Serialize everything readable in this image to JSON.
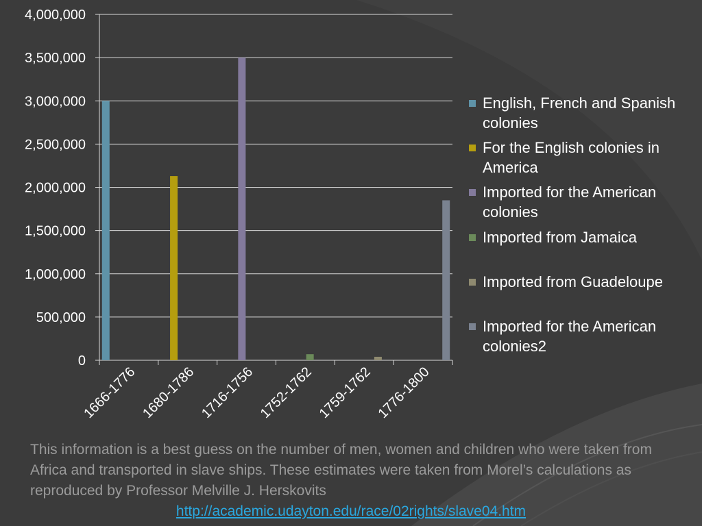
{
  "chart_data": {
    "type": "bar",
    "categories": [
      "1666-1776",
      "1680-1786",
      "1716-1756",
      "1752-1762",
      "1759-1762",
      "1776-1800"
    ],
    "series": [
      {
        "name": "English, French and Spanish colonies",
        "color": "#5f93a8",
        "values": [
          3000000,
          null,
          null,
          null,
          null,
          null
        ]
      },
      {
        "name": "For the English colonies in America",
        "color": "#b59e0f",
        "values": [
          null,
          2130000,
          null,
          null,
          null,
          null
        ]
      },
      {
        "name": "Imported for the American colonies",
        "color": "#837a9c",
        "values": [
          null,
          null,
          3500000,
          null,
          null,
          null
        ]
      },
      {
        "name": "Imported from Jamaica",
        "color": "#6b8a5a",
        "values": [
          null,
          null,
          null,
          70000,
          null,
          null
        ]
      },
      {
        "name": "Imported from Guadeloupe",
        "color": "#8f8a70",
        "values": [
          null,
          null,
          null,
          null,
          40000,
          null
        ]
      },
      {
        "name": "Imported for the American colonies2",
        "color": "#7a8290",
        "values": [
          null,
          null,
          null,
          null,
          null,
          1850000
        ]
      }
    ],
    "ylim": [
      0,
      4000000
    ],
    "yticks": [
      0,
      500000,
      1000000,
      1500000,
      2000000,
      2500000,
      3000000,
      3500000,
      4000000
    ],
    "ytick_labels": [
      "0",
      "500,000",
      "1,000,000",
      "1,500,000",
      "2,000,000",
      "2,500,000",
      "3,000,000",
      "3,500,000",
      "4,000,000"
    ],
    "grid": true,
    "legend_position": "right"
  },
  "caption": "This information is a best guess on the number of men, women and children who were taken from Africa and transported in slave ships. These estimates were taken from Morel’s calculations as reproduced by Professor Melville J. Herskovits",
  "link_text": "http://academic.udayton.edu/race/02rights/slave04.htm"
}
